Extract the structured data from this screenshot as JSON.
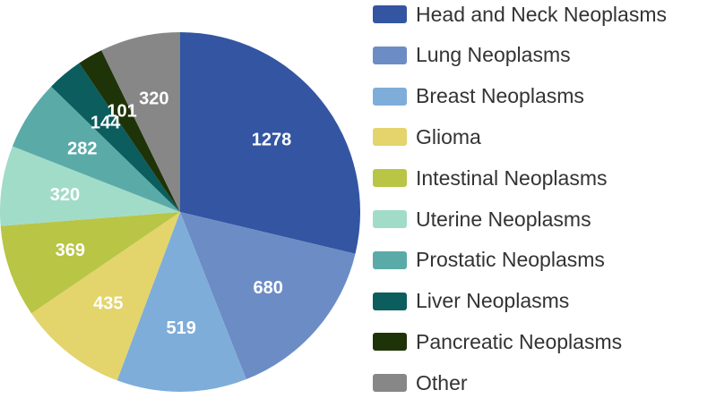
{
  "chart_data": {
    "type": "pie",
    "title": "",
    "categories": [
      "Head and Neck Neoplasms",
      "Lung Neoplasms",
      "Breast Neoplasms",
      "Glioma",
      "Intestinal Neoplasms",
      "Uterine Neoplasms",
      "Prostatic Neoplasms",
      "Liver Neoplasms",
      "Pancreatic Neoplasms",
      "Other"
    ],
    "values": [
      1278,
      680,
      519,
      435,
      369,
      320,
      282,
      144,
      101,
      320
    ],
    "colors": [
      "#3455a1",
      "#6c8cc6",
      "#7eadd9",
      "#e3d46c",
      "#b8c545",
      "#a1dcc9",
      "#5aaaa8",
      "#0b5d5e",
      "#1f3308",
      "#878787"
    ],
    "legend_position": "right"
  }
}
